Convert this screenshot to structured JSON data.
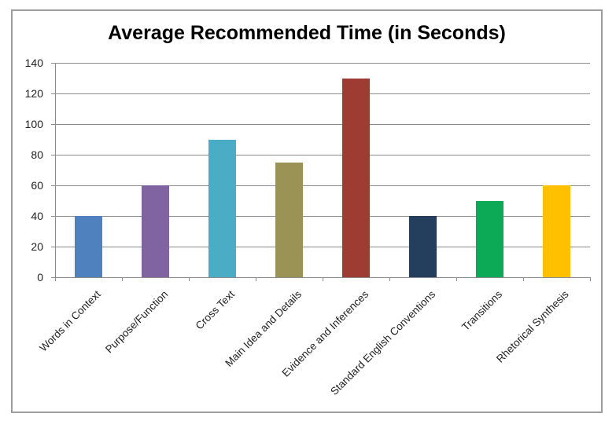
{
  "chart_data": {
    "type": "bar",
    "title": "Average Recommended Time (in Seconds)",
    "xlabel": "",
    "ylabel": "",
    "categories": [
      "Words in Context",
      "Purpose/Function",
      "Cross Text",
      "Main Idea and Details",
      "Evidence and Inferences",
      "Standard English Conventions",
      "Transitions",
      "Rhetorical Synthesis"
    ],
    "values": [
      40,
      60,
      90,
      75,
      130,
      40,
      50,
      60
    ],
    "bar_colors": [
      "#4e81bd",
      "#8064a2",
      "#4bacc6",
      "#9b9356",
      "#9e3b33",
      "#243e5e",
      "#0ca957",
      "#ffc000"
    ],
    "ylim": [
      0,
      140
    ],
    "yticks": [
      0,
      20,
      40,
      60,
      80,
      100,
      120,
      140
    ],
    "grid": "horizontal",
    "legend": "none",
    "x_label_rotation_deg": -45,
    "colors": {
      "gridline": "#8c8c8c",
      "axis": "#8c8c8c",
      "frame_border": "#9d9d9d",
      "tick_label": "#1f1f1f",
      "title": "#000000",
      "background": "#ffffff"
    }
  }
}
